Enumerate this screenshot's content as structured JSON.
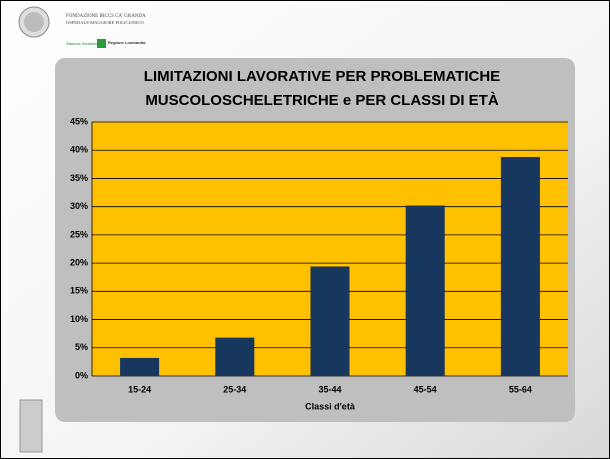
{
  "header": {
    "org_line1": "FONDAZIONE IRCCS CA' GRANDA",
    "org_line2": "OSPEDALE MAGGIORE POLICLINICO",
    "system": "Sistema Sanitario",
    "region": "Regione Lombardia"
  },
  "chart_data": {
    "type": "bar",
    "title": [
      "LIMITAZIONI LAVORATIVE PER PROBLEMATICHE",
      "MUSCOLOSCHELETRICHE  e PER CLASSI DI ETÀ"
    ],
    "categories": [
      "15-24",
      "25-34",
      "35-44",
      "45-54",
      "55-64"
    ],
    "values": [
      3.2,
      6.8,
      19.4,
      30.2,
      38.8
    ],
    "color": "#17375e",
    "xlabel": "Classi d'età",
    "ylim": [
      0,
      45
    ],
    "yticks": [
      {
        "value": 0,
        "label": "0%"
      },
      {
        "value": 5,
        "label": "5%"
      },
      {
        "value": 10,
        "label": "10%"
      },
      {
        "value": 15,
        "label": "15%"
      },
      {
        "value": 20,
        "label": "20%"
      },
      {
        "value": 25,
        "label": "25%"
      },
      {
        "value": 30,
        "label": "30%"
      },
      {
        "value": 35,
        "label": "35%"
      },
      {
        "value": 40,
        "label": "40%"
      },
      {
        "value": 45,
        "label": "45%"
      }
    ],
    "grid": true
  }
}
